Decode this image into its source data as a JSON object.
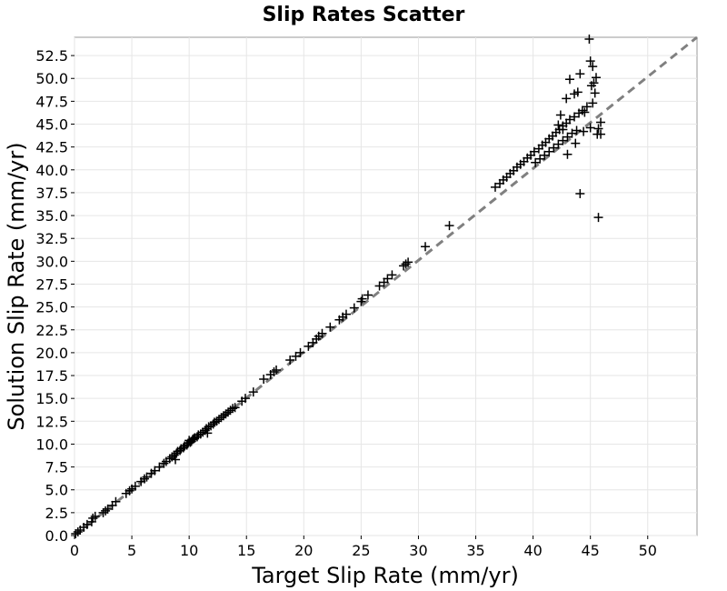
{
  "chart_data": {
    "type": "scatter",
    "title": "Slip Rates Scatter",
    "xlabel": "Target Slip Rate (mm/yr)",
    "ylabel": "Solution Slip Rate (mm/yr)",
    "xlim": [
      0,
      54.3
    ],
    "ylim": [
      0,
      54.5
    ],
    "xticks": [
      0,
      5,
      10,
      15,
      20,
      25,
      30,
      35,
      40,
      45,
      50
    ],
    "xtick_labels": [
      "0",
      "5",
      "10",
      "15",
      "20",
      "25",
      "30",
      "35",
      "40",
      "45",
      "50"
    ],
    "yticks": [
      0,
      2.5,
      5,
      7.5,
      10,
      12.5,
      15,
      17.5,
      20,
      22.5,
      25,
      27.5,
      30,
      32.5,
      35,
      37.5,
      40,
      42.5,
      45,
      47.5,
      50,
      52.5
    ],
    "ytick_labels": [
      "0.0",
      "2.5",
      "5.0",
      "7.5",
      "10.0",
      "12.5",
      "15.0",
      "17.5",
      "20.0",
      "22.5",
      "25.0",
      "27.5",
      "30.0",
      "32.5",
      "35.0",
      "37.5",
      "40.0",
      "42.5",
      "45.0",
      "47.5",
      "50.0",
      "52.5"
    ],
    "grid": true,
    "marker": "plus",
    "colors": {
      "points": "#000000",
      "reference_line": "#808080",
      "grid": "#e6e6e6"
    },
    "reference_line": {
      "style": "dashed",
      "from": [
        0,
        0
      ],
      "to": [
        54.3,
        54.5
      ]
    },
    "series": [
      {
        "points": [
          [
            0.1,
            0.2
          ],
          [
            0.3,
            0.4
          ],
          [
            0.5,
            0.6
          ],
          [
            0.8,
            0.9
          ],
          [
            1.1,
            1.2
          ],
          [
            1.5,
            1.5
          ],
          [
            1.6,
            1.9
          ],
          [
            1.8,
            2.1
          ],
          [
            2.5,
            2.5
          ],
          [
            2.7,
            2.7
          ],
          [
            2.9,
            2.9
          ],
          [
            3.3,
            3.3
          ],
          [
            3.6,
            3.7
          ],
          [
            4.5,
            4.6
          ],
          [
            4.8,
            4.9
          ],
          [
            5.0,
            5.1
          ],
          [
            5.3,
            5.4
          ],
          [
            5.8,
            5.9
          ],
          [
            6.1,
            6.2
          ],
          [
            6.3,
            6.4
          ],
          [
            6.7,
            6.8
          ],
          [
            7.0,
            7.1
          ],
          [
            7.4,
            7.5
          ],
          [
            7.8,
            7.9
          ],
          [
            8.0,
            8.1
          ],
          [
            8.3,
            8.4
          ],
          [
            8.5,
            8.6
          ],
          [
            8.7,
            8.8
          ],
          [
            8.8,
            8.3
          ],
          [
            8.9,
            9.0
          ],
          [
            9.0,
            9.2
          ],
          [
            9.2,
            9.3
          ],
          [
            9.3,
            9.5
          ],
          [
            9.5,
            9.6
          ],
          [
            9.6,
            9.8
          ],
          [
            9.8,
            9.9
          ],
          [
            9.9,
            10.1
          ],
          [
            10.0,
            10.4
          ],
          [
            10.1,
            10.2
          ],
          [
            10.2,
            10.3
          ],
          [
            10.3,
            10.5
          ],
          [
            10.4,
            10.6
          ],
          [
            10.5,
            10.7
          ],
          [
            10.7,
            10.8
          ],
          [
            10.8,
            11.0
          ],
          [
            11.0,
            11.1
          ],
          [
            11.2,
            11.3
          ],
          [
            11.4,
            11.5
          ],
          [
            11.5,
            11.7
          ],
          [
            11.6,
            11.2
          ],
          [
            11.7,
            11.9
          ],
          [
            11.9,
            12.0
          ],
          [
            12.1,
            12.2
          ],
          [
            12.2,
            12.4
          ],
          [
            12.4,
            12.5
          ],
          [
            12.6,
            12.7
          ],
          [
            12.8,
            12.9
          ],
          [
            13.0,
            13.1
          ],
          [
            13.2,
            13.3
          ],
          [
            13.4,
            13.5
          ],
          [
            13.6,
            13.7
          ],
          [
            13.8,
            13.9
          ],
          [
            14.0,
            14.0
          ],
          [
            14.6,
            14.7
          ],
          [
            14.9,
            15.0
          ],
          [
            15.6,
            15.7
          ],
          [
            16.5,
            17.1
          ],
          [
            17.1,
            17.6
          ],
          [
            17.4,
            17.9
          ],
          [
            17.6,
            18.1
          ],
          [
            18.8,
            19.2
          ],
          [
            19.3,
            19.6
          ],
          [
            19.7,
            20.0
          ],
          [
            20.4,
            20.7
          ],
          [
            20.8,
            21.1
          ],
          [
            21.1,
            21.5
          ],
          [
            21.3,
            21.8
          ],
          [
            21.6,
            22.1
          ],
          [
            22.3,
            22.8
          ],
          [
            23.1,
            23.6
          ],
          [
            23.4,
            23.9
          ],
          [
            23.7,
            24.2
          ],
          [
            24.4,
            24.9
          ],
          [
            25.0,
            25.6
          ],
          [
            25.1,
            25.9
          ],
          [
            25.6,
            26.3
          ],
          [
            26.6,
            27.3
          ],
          [
            27.0,
            27.7
          ],
          [
            27.3,
            28.1
          ],
          [
            27.7,
            28.5
          ],
          [
            28.7,
            29.5
          ],
          [
            28.9,
            29.7
          ],
          [
            29.1,
            29.9
          ],
          [
            30.6,
            31.6
          ],
          [
            32.7,
            33.9
          ],
          [
            36.7,
            38.1
          ],
          [
            37.1,
            38.5
          ],
          [
            37.4,
            38.9
          ],
          [
            37.7,
            39.2
          ],
          [
            38.0,
            39.6
          ],
          [
            38.3,
            39.9
          ],
          [
            38.6,
            40.3
          ],
          [
            38.9,
            40.6
          ],
          [
            39.2,
            40.9
          ],
          [
            39.5,
            41.3
          ],
          [
            39.8,
            41.6
          ],
          [
            40.1,
            42.0
          ],
          [
            40.5,
            42.3
          ],
          [
            40.8,
            42.7
          ],
          [
            41.1,
            43.0
          ],
          [
            41.4,
            43.4
          ],
          [
            41.7,
            43.7
          ],
          [
            42.0,
            44.1
          ],
          [
            42.3,
            44.4
          ],
          [
            42.6,
            44.8
          ],
          [
            42.9,
            45.1
          ],
          [
            43.2,
            45.5
          ],
          [
            43.6,
            45.8
          ],
          [
            44.0,
            46.2
          ],
          [
            44.3,
            46.5
          ],
          [
            40.2,
            40.8
          ],
          [
            40.6,
            41.2
          ],
          [
            41.0,
            41.6
          ],
          [
            41.4,
            42.0
          ],
          [
            41.8,
            42.4
          ],
          [
            42.2,
            42.8
          ],
          [
            42.6,
            43.2
          ],
          [
            43.0,
            43.6
          ],
          [
            43.4,
            44.0
          ],
          [
            43.8,
            44.3
          ],
          [
            42.2,
            44.9
          ],
          [
            42.6,
            44.4
          ],
          [
            42.4,
            46.0
          ],
          [
            42.9,
            47.8
          ],
          [
            43.2,
            49.9
          ],
          [
            43.6,
            48.3
          ],
          [
            43.9,
            48.5
          ],
          [
            44.1,
            50.5
          ],
          [
            44.5,
            46.3
          ],
          [
            44.7,
            46.9
          ],
          [
            44.9,
            54.3
          ],
          [
            45.0,
            51.9
          ],
          [
            45.1,
            49.2
          ],
          [
            45.2,
            51.3
          ],
          [
            45.3,
            49.5
          ],
          [
            45.4,
            48.4
          ],
          [
            45.5,
            50.1
          ],
          [
            45.2,
            47.3
          ],
          [
            45.0,
            44.6
          ],
          [
            44.4,
            44.2
          ],
          [
            43.0,
            41.7
          ],
          [
            43.7,
            42.9
          ],
          [
            44.1,
            37.4
          ],
          [
            45.7,
            44.5
          ],
          [
            45.9,
            45.2
          ],
          [
            45.6,
            43.9
          ],
          [
            45.9,
            43.9
          ],
          [
            45.7,
            34.8
          ]
        ]
      }
    ]
  }
}
